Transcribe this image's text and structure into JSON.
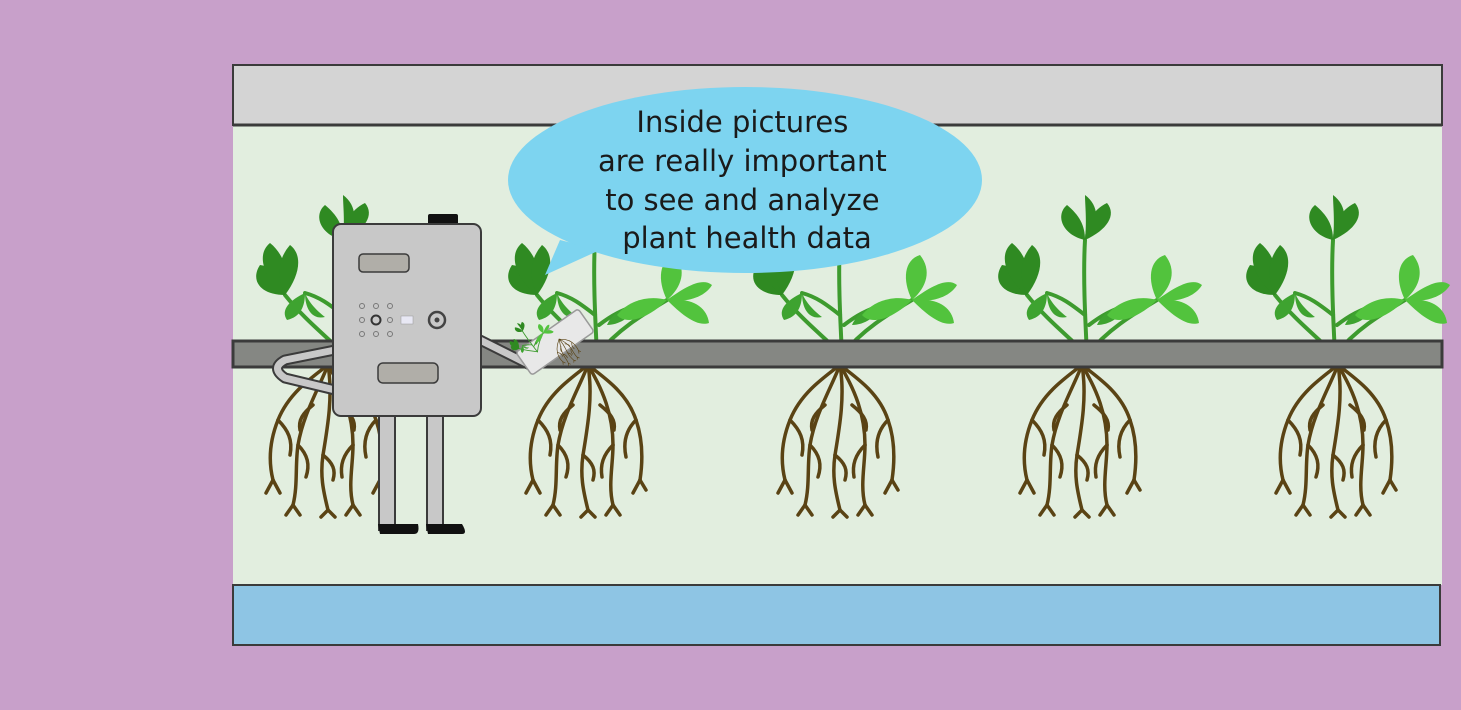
{
  "scene": {
    "background_color": "#c8a0ca",
    "top_panel_color": "#d4d4d4",
    "grow_area_color": "#e2eedf",
    "rail_color": "#858783",
    "water_color": "#8ec5e4",
    "leaf_dark_color": "#2f8a22",
    "leaf_mid_color": "#3ea330",
    "leaf_light_color": "#52c33d",
    "root_color": "#5a4314",
    "robot_body_color": "#c8c8c8",
    "speech_bubble_color": "#7dd4f0",
    "plant_count": 5
  },
  "speech_bubble": {
    "lines": [
      "Inside pictures",
      "are really important",
      "to see and analyze",
      "plant health data"
    ]
  },
  "icons": {
    "robot": "robot-icon",
    "plant": "plant-icon",
    "roots": "roots-icon",
    "tablet": "tablet-icon"
  }
}
